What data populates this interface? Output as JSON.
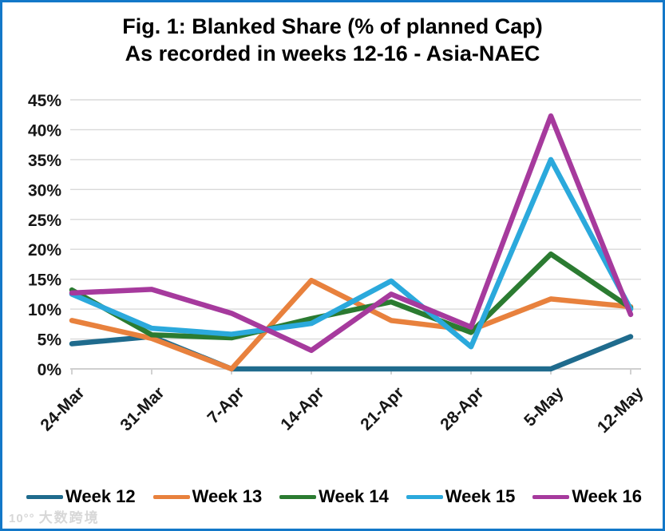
{
  "frame": {
    "border_color": "#1378C8",
    "background": "#FFFFFF"
  },
  "title": {
    "line1": "Fig. 1: Blanked Share (% of planned Cap)",
    "line2": "As recorded in weeks 12-16 - Asia-NAEC"
  },
  "watermark": {
    "logo_text": "10°°",
    "text": "大数跨境"
  },
  "chart_data": {
    "type": "line",
    "title": "Fig. 1: Blanked Share (% of planned Cap) As recorded in weeks 12-16 - Asia-NAEC",
    "categories": [
      "24-Mar",
      "31-Mar",
      "7-Apr",
      "14-Apr",
      "21-Apr",
      "28-Apr",
      "5-May",
      "12-May"
    ],
    "series": [
      {
        "name": "Week 12",
        "color": "#1F6B8D",
        "values": [
          4.2,
          5.4,
          0,
          0,
          0,
          0,
          0,
          5.4
        ]
      },
      {
        "name": "Week 13",
        "color": "#E8813D",
        "values": [
          8.1,
          5.1,
          0,
          14.8,
          8.1,
          6.5,
          11.7,
          10.4
        ]
      },
      {
        "name": "Week 14",
        "color": "#2B7B31",
        "values": [
          13.2,
          5.7,
          5.2,
          8.4,
          11.2,
          6.1,
          19.2,
          10.2
        ]
      },
      {
        "name": "Week 15",
        "color": "#2BA9DC",
        "values": [
          12.5,
          6.8,
          5.8,
          7.6,
          14.7,
          3.7,
          35.0,
          10.0
        ]
      },
      {
        "name": "Week 16",
        "color": "#A63A9D",
        "values": [
          12.7,
          13.3,
          9.3,
          3.1,
          12.5,
          7.0,
          42.3,
          9.1
        ]
      }
    ],
    "xlabel": "",
    "ylabel": "",
    "ylim": [
      0,
      45
    ],
    "ytick_step": 5,
    "yticks": [
      "0%",
      "5%",
      "10%",
      "15%",
      "20%",
      "25%",
      "30%",
      "35%",
      "40%",
      "45%"
    ],
    "grid": true,
    "grid_color": "#D9D9D9",
    "axis_color": "#BFBFBF",
    "legend_position": "bottom"
  }
}
